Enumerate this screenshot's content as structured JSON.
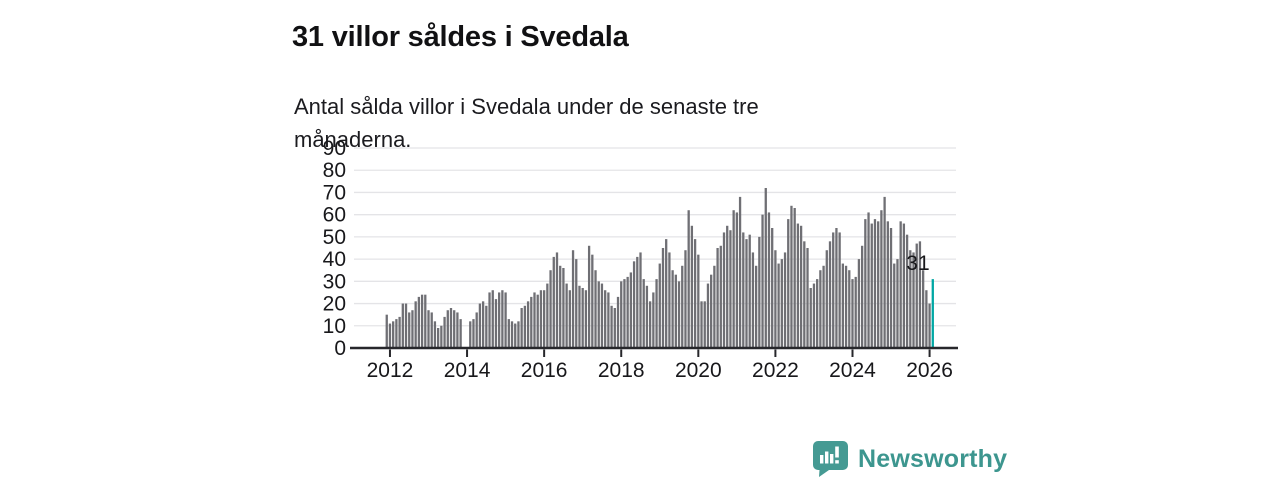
{
  "header": {
    "title": "31 villor såldes i Svedala",
    "subtitle": "Antal sålda villor i Svedala under de senaste tre månaderna."
  },
  "chart_data": {
    "type": "bar",
    "title": "31 villor såldes i Svedala",
    "subtitle": "Antal sålda villor i Svedala under de senaste tre månaderna.",
    "x_start": "2011-12",
    "x_frequency": "monthly",
    "x_tick_labels": [
      "2012",
      "2014",
      "2016",
      "2018",
      "2020",
      "2022",
      "2024",
      "2026"
    ],
    "y_ticks": [
      0,
      10,
      20,
      30,
      40,
      50,
      60,
      70,
      80,
      90
    ],
    "ylim": [
      0,
      90
    ],
    "grid": true,
    "values": [
      15,
      11,
      12,
      13,
      14,
      20,
      20,
      16,
      17,
      21,
      23,
      24,
      24,
      17,
      16,
      12,
      9,
      10,
      14,
      17,
      18,
      17,
      16,
      13,
      0,
      0,
      12,
      13,
      16,
      20,
      21,
      19,
      25,
      26,
      22,
      25,
      26,
      25,
      13,
      12,
      11,
      12,
      18,
      19,
      21,
      23,
      25,
      24,
      26,
      26,
      29,
      35,
      41,
      43,
      37,
      36,
      29,
      26,
      44,
      40,
      28,
      27,
      26,
      46,
      42,
      35,
      30,
      29,
      26,
      25,
      19,
      18,
      23,
      30,
      31,
      32,
      34,
      39,
      41,
      43,
      31,
      28,
      21,
      25,
      31,
      38,
      45,
      49,
      43,
      35,
      33,
      30,
      37,
      44,
      62,
      55,
      49,
      42,
      21,
      21,
      29,
      33,
      37,
      45,
      46,
      52,
      55,
      53,
      62,
      61,
      68,
      52,
      49,
      51,
      43,
      37,
      50,
      60,
      72,
      61,
      54,
      44,
      38,
      40,
      43,
      58,
      64,
      63,
      56,
      55,
      48,
      45,
      27,
      29,
      31,
      35,
      37,
      44,
      48,
      52,
      54,
      52,
      38,
      37,
      35,
      31,
      32,
      40,
      46,
      58,
      61,
      56,
      58,
      57,
      62,
      68,
      57,
      54,
      38,
      40,
      57,
      56,
      51,
      44,
      43,
      47,
      48,
      35,
      26,
      20,
      31
    ],
    "highlight_last_bar": true,
    "annotation": {
      "label": "31",
      "value": 31
    },
    "colors": {
      "bar": "#6f6f74",
      "highlight": "#00a7a4",
      "grid": "#e4e4e7",
      "axis": "#27272b",
      "text": "#18181b"
    }
  },
  "footer": {
    "logo_text": "Newsworthy",
    "logo_icon": "newsworthy-bar-chart-bubble-icon",
    "logo_color": "#3d968f"
  }
}
